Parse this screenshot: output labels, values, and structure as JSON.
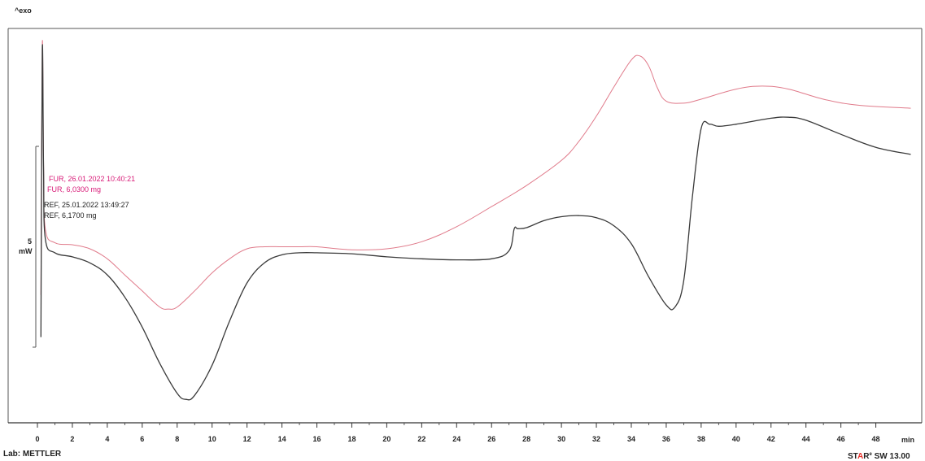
{
  "header": {
    "exo_label": "^exo"
  },
  "footer": {
    "lab_label": "Lab: METTLER",
    "software_label_part1": "ST",
    "software_label_accent": "A",
    "software_label_part2": "R",
    "software_label_sup": "e",
    "software_label_version": " SW 13.00"
  },
  "colors": {
    "fur": "#e07a8a",
    "fur_text": "#d81b78",
    "ref": "#3a3a3a",
    "accent": "#e8302a"
  },
  "chart_data": {
    "type": "line",
    "xlabel": "min",
    "ylabel": "mW",
    "y_scale_label": "5",
    "xlim": [
      0,
      50
    ],
    "xticks": [
      0,
      2,
      4,
      6,
      8,
      10,
      12,
      14,
      16,
      18,
      20,
      22,
      24,
      26,
      28,
      30,
      32,
      34,
      36,
      38,
      40,
      42,
      44,
      46,
      48
    ],
    "xtick_labels": [
      "0",
      "2",
      "4",
      "6",
      "8",
      "10",
      "12",
      "14",
      "16",
      "18",
      "20",
      "22",
      "24",
      "26",
      "28",
      "30",
      "32",
      "34",
      "36",
      "38",
      "40",
      "42",
      "44",
      "46",
      "48"
    ],
    "grid": false,
    "legend": [
      {
        "series": "FUR",
        "lines": [
          "FUR, 26.01.2022 10:40:21",
          "FUR, 6,0300 mg"
        ]
      },
      {
        "series": "REF",
        "lines": [
          "REF, 25.01.2022 13:49:27",
          "REF, 6,1700 mg"
        ]
      }
    ],
    "series": [
      {
        "name": "FUR",
        "x": [
          0.2,
          0.28,
          0.35,
          0.45,
          1,
          2,
          3,
          4,
          5,
          6,
          7,
          7.5,
          8,
          9,
          10,
          11,
          12,
          13,
          14,
          15,
          16,
          18,
          20,
          22,
          24,
          26,
          28,
          30,
          31,
          32,
          33,
          34,
          34.5,
          35,
          35.5,
          36,
          37,
          38,
          40,
          41.5,
          43,
          45,
          47,
          50
        ],
        "y": [
          2.6,
          15.1,
          9.3,
          5.9,
          5.2,
          5.1,
          4.9,
          4.4,
          3.6,
          2.8,
          2.0,
          1.9,
          2.0,
          2.8,
          3.7,
          4.4,
          4.9,
          5.0,
          5.0,
          5.0,
          5.0,
          4.85,
          4.9,
          5.25,
          6.0,
          7.0,
          8.05,
          9.3,
          10.25,
          11.5,
          12.95,
          14.3,
          14.5,
          14.0,
          12.9,
          12.25,
          12.15,
          12.35,
          12.85,
          13.0,
          12.85,
          12.35,
          12.05,
          11.9
        ]
      },
      {
        "name": "REF",
        "x": [
          0.2,
          0.28,
          0.35,
          0.45,
          1,
          2,
          3,
          4,
          5,
          6,
          7,
          8,
          8.5,
          9,
          10,
          11,
          12,
          13,
          14,
          15,
          16,
          18,
          20,
          22,
          24,
          26,
          27,
          27.3,
          27.5,
          28,
          29,
          30,
          31,
          32,
          33,
          34,
          35,
          36,
          36.5,
          37,
          37.5,
          38,
          38.5,
          39,
          40,
          42,
          43,
          44,
          46,
          48,
          50
        ],
        "y": [
          0.5,
          14.8,
          9.0,
          5.4,
          4.7,
          4.5,
          4.2,
          3.6,
          2.5,
          1.0,
          -0.8,
          -2.3,
          -2.6,
          -2.4,
          -0.9,
          1.3,
          3.2,
          4.2,
          4.6,
          4.7,
          4.7,
          4.65,
          4.5,
          4.4,
          4.35,
          4.4,
          4.8,
          5.9,
          5.9,
          5.95,
          6.3,
          6.5,
          6.55,
          6.45,
          6.05,
          5.15,
          3.5,
          2.1,
          2.0,
          3.3,
          7.5,
          10.9,
          11.1,
          11.0,
          11.1,
          11.4,
          11.45,
          11.3,
          10.6,
          9.95,
          9.6
        ]
      }
    ]
  }
}
